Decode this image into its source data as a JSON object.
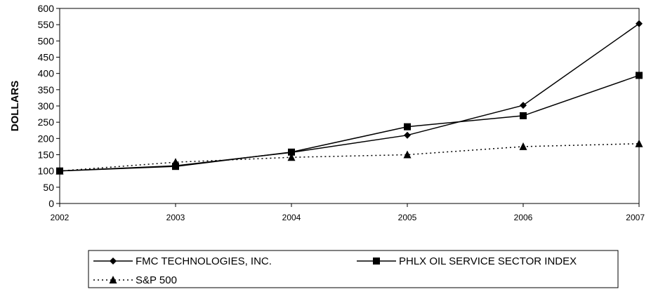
{
  "chart_data": {
    "type": "line",
    "title": "",
    "xlabel": "",
    "ylabel": "DOLLARS",
    "x": [
      "2002",
      "2003",
      "2004",
      "2005",
      "2006",
      "2007"
    ],
    "ylim": [
      0,
      600
    ],
    "yticks": [
      0,
      50,
      100,
      150,
      200,
      250,
      300,
      350,
      400,
      450,
      500,
      550,
      600
    ],
    "grid": false,
    "legend_position": "bottom",
    "series": [
      {
        "name": "FMC TECHNOLOGIES, INC.",
        "values": [
          100,
          116,
          157,
          210,
          302,
          553
        ],
        "marker": "diamond",
        "line_style": "solid",
        "color": "#000000"
      },
      {
        "name": "PHLX OIL SERVICE SECTOR INDEX",
        "values": [
          100,
          114,
          158,
          236,
          270,
          394
        ],
        "marker": "square",
        "line_style": "solid",
        "color": "#000000"
      },
      {
        "name": "S&P 500",
        "values": [
          100,
          127,
          142,
          150,
          175,
          184
        ],
        "marker": "triangle",
        "line_style": "dotted",
        "color": "#000000"
      }
    ]
  }
}
